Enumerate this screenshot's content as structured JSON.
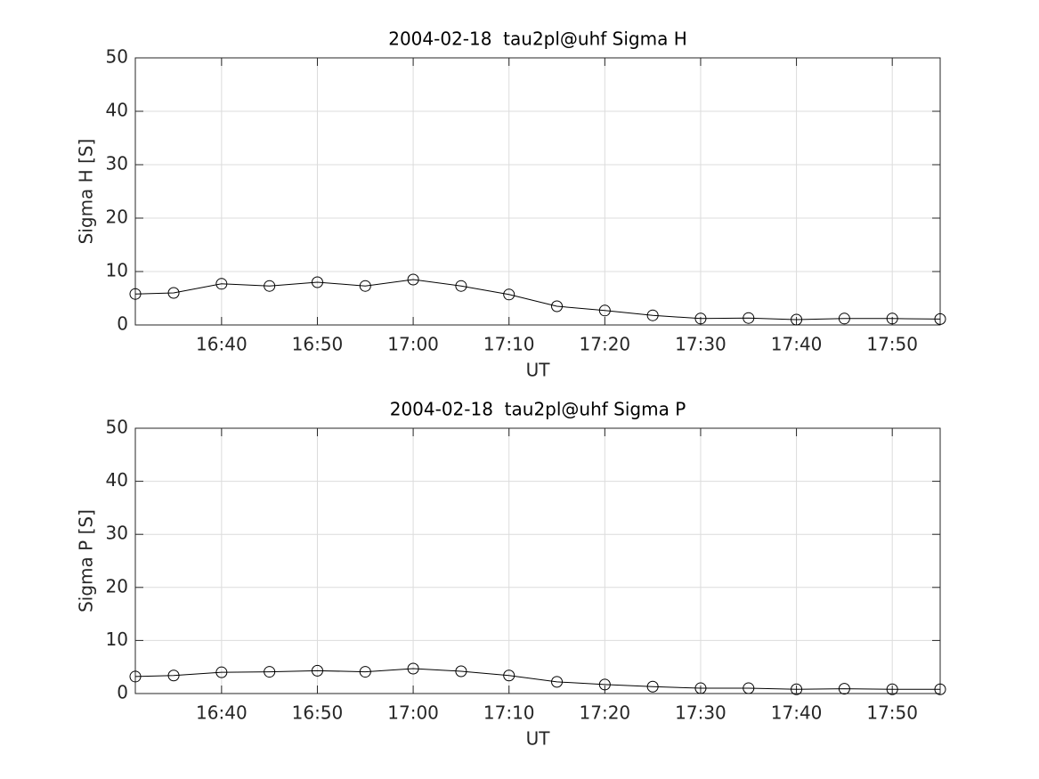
{
  "chart_data": [
    {
      "type": "line",
      "title": "2004-02-18  tau2pl@uhf Sigma H",
      "xlabel": "UT",
      "ylabel": "Sigma H [S]",
      "x": [
        "16:31",
        "16:35",
        "16:40",
        "16:45",
        "16:50",
        "16:55",
        "17:00",
        "17:05",
        "17:10",
        "17:15",
        "17:20",
        "17:25",
        "17:30",
        "17:35",
        "17:40",
        "17:45",
        "17:50",
        "17:55"
      ],
      "series": [
        {
          "name": "Sigma H",
          "color": "#000000",
          "values": [
            5.8,
            6.0,
            7.7,
            7.3,
            8.0,
            7.3,
            8.5,
            7.3,
            5.7,
            3.5,
            2.7,
            1.8,
            1.2,
            1.3,
            1.0,
            1.2,
            1.2,
            1.1
          ]
        }
      ],
      "xlim": [
        "16:31",
        "17:55"
      ],
      "xticks": [
        "16:40",
        "16:50",
        "17:00",
        "17:10",
        "17:20",
        "17:30",
        "17:40",
        "17:50"
      ],
      "ylim": [
        0,
        50
      ],
      "yticks": [
        0,
        10,
        20,
        30,
        40,
        50
      ],
      "grid": true,
      "marker": "circle"
    },
    {
      "type": "line",
      "title": "2004-02-18  tau2pl@uhf Sigma P",
      "xlabel": "UT",
      "ylabel": "Sigma P [S]",
      "x": [
        "16:31",
        "16:35",
        "16:40",
        "16:45",
        "16:50",
        "16:55",
        "17:00",
        "17:05",
        "17:10",
        "17:15",
        "17:20",
        "17:25",
        "17:30",
        "17:35",
        "17:40",
        "17:45",
        "17:50",
        "17:55"
      ],
      "series": [
        {
          "name": "Sigma P",
          "color": "#000000",
          "values": [
            3.2,
            3.4,
            4.0,
            4.1,
            4.3,
            4.1,
            4.7,
            4.2,
            3.4,
            2.2,
            1.7,
            1.3,
            1.0,
            1.0,
            0.8,
            0.9,
            0.8,
            0.8
          ]
        }
      ],
      "xlim": [
        "16:31",
        "17:55"
      ],
      "xticks": [
        "16:40",
        "16:50",
        "17:00",
        "17:10",
        "17:20",
        "17:30",
        "17:40",
        "17:50"
      ],
      "ylim": [
        0,
        50
      ],
      "yticks": [
        0,
        10,
        20,
        30,
        40,
        50
      ],
      "grid": true,
      "marker": "circle"
    }
  ]
}
